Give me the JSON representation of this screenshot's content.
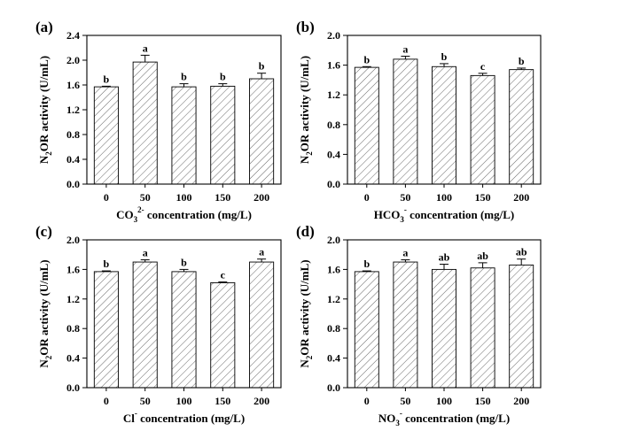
{
  "chart_data": [
    {
      "panel_label": "(a)",
      "type": "bar",
      "categories": [
        "0",
        "50",
        "100",
        "150",
        "200"
      ],
      "values": [
        1.57,
        1.97,
        1.57,
        1.58,
        1.7
      ],
      "errors": [
        0.01,
        0.11,
        0.05,
        0.04,
        0.09
      ],
      "significance": [
        "b",
        "a",
        "b",
        "b",
        "b"
      ],
      "ylabel": {
        "main": "N",
        "sub": "2",
        "rest": "OR activity (U/mL)"
      },
      "xlabel": {
        "main": "CO",
        "sub": "3",
        "sup": "2-",
        "rest": " concentration (mg/L)"
      },
      "ylim": [
        0,
        2.4
      ],
      "yticks": [
        "0.0",
        "0.4",
        "0.8",
        "1.2",
        "1.6",
        "2.0",
        "2.4"
      ]
    },
    {
      "panel_label": "(b)",
      "type": "bar",
      "categories": [
        "0",
        "50",
        "100",
        "150",
        "200"
      ],
      "values": [
        1.57,
        1.68,
        1.58,
        1.46,
        1.54
      ],
      "errors": [
        0.01,
        0.04,
        0.04,
        0.03,
        0.02
      ],
      "significance": [
        "b",
        "a",
        "b",
        "c",
        "b"
      ],
      "ylabel": {
        "main": "N",
        "sub": "2",
        "rest": "OR activity (U/mL)"
      },
      "xlabel": {
        "main": "HCO",
        "sub": "3",
        "sup": "-",
        "rest": " concentration (mg/L)"
      },
      "ylim": [
        0,
        2.0
      ],
      "yticks": [
        "0.0",
        "0.4",
        "0.8",
        "1.2",
        "1.6",
        "2.0"
      ]
    },
    {
      "panel_label": "(c)",
      "type": "bar",
      "categories": [
        "0",
        "50",
        "100",
        "150",
        "200"
      ],
      "values": [
        1.57,
        1.7,
        1.57,
        1.42,
        1.7
      ],
      "errors": [
        0.01,
        0.03,
        0.03,
        0.01,
        0.04
      ],
      "significance": [
        "b",
        "a",
        "b",
        "c",
        "a"
      ],
      "ylabel": {
        "main": "N",
        "sub": "2",
        "rest": "OR activity (U/mL)"
      },
      "xlabel": {
        "main": "Cl",
        "sub": "",
        "sup": "-",
        "rest": " concentration (mg/L)"
      },
      "ylim": [
        0,
        2.0
      ],
      "yticks": [
        "0.0",
        "0.4",
        "0.8",
        "1.2",
        "1.6",
        "2.0"
      ]
    },
    {
      "panel_label": "(d)",
      "type": "bar",
      "categories": [
        "0",
        "50",
        "100",
        "150",
        "200"
      ],
      "values": [
        1.57,
        1.7,
        1.6,
        1.62,
        1.66
      ],
      "errors": [
        0.01,
        0.03,
        0.07,
        0.07,
        0.08
      ],
      "significance": [
        "b",
        "a",
        "ab",
        "ab",
        "ab"
      ],
      "ylabel": {
        "main": "N",
        "sub": "2",
        "rest": "OR activity (U/mL)"
      },
      "xlabel": {
        "main": "NO",
        "sub": "3",
        "sup": "-",
        "rest": " concentration (mg/L)"
      },
      "ylim": [
        0,
        2.0
      ],
      "yticks": [
        "0.0",
        "0.4",
        "0.8",
        "1.2",
        "1.6",
        "2.0"
      ]
    }
  ]
}
